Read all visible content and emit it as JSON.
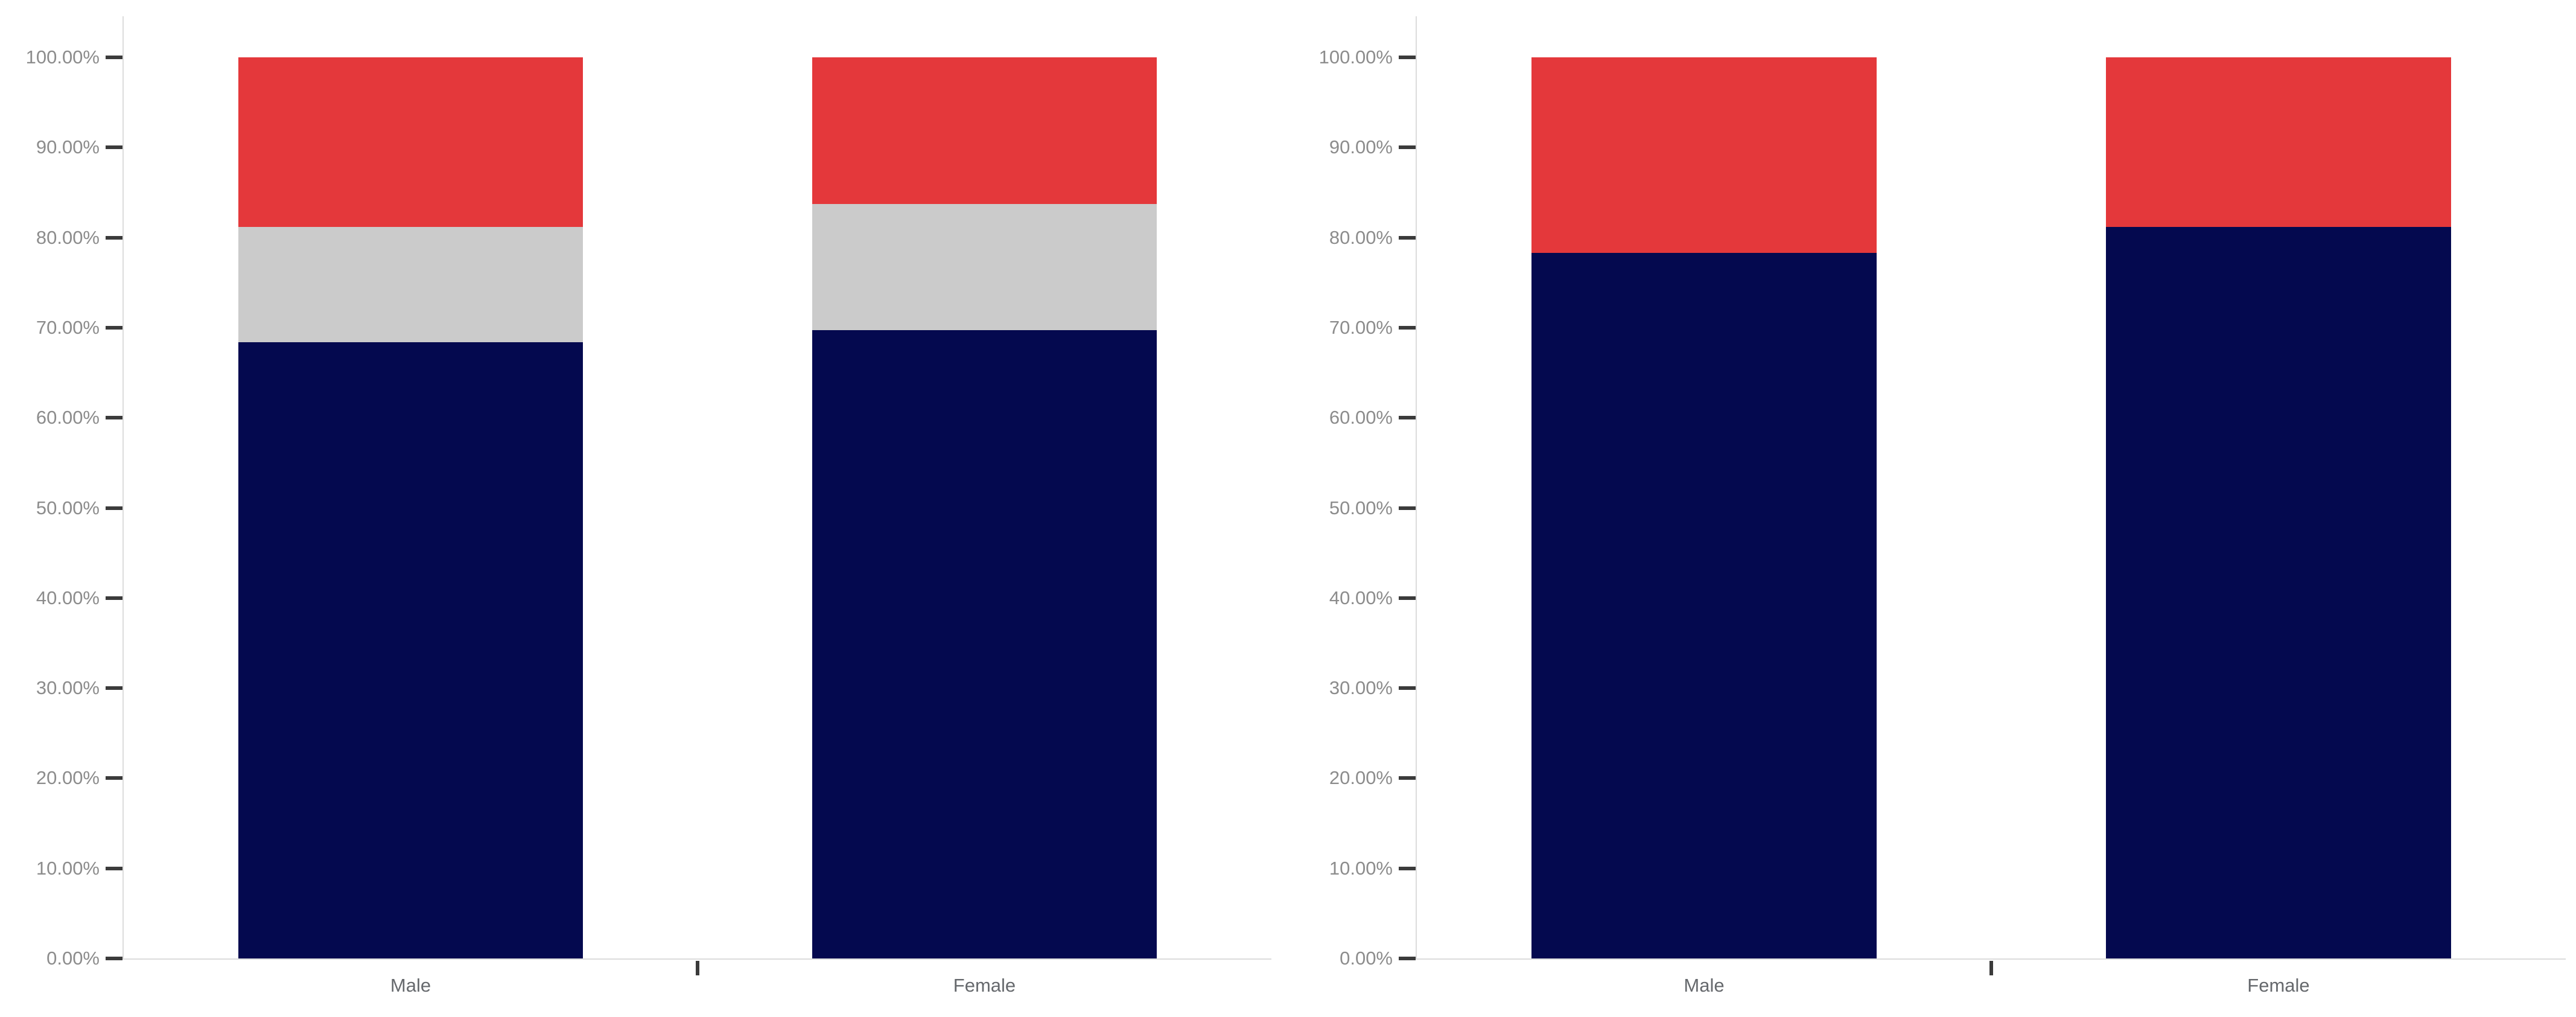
{
  "page": {
    "background_color": "#ffffff"
  },
  "styles": {
    "axis_line_color": "#dcdcdc",
    "tick_mark_color": "#3b3b3b",
    "y_tick_label_color": "#8c8c8c",
    "x_tick_label_color": "#66696d"
  },
  "chart_data": [
    {
      "type": "bar",
      "stacked": true,
      "orientation": "vertical",
      "title": "",
      "categories": [
        "Male",
        "Female"
      ],
      "series": [
        {
          "name": "navy-segment",
          "color": "#04094f",
          "values": [
            68.4,
            69.7
          ]
        },
        {
          "name": "silver-segment",
          "color": "#cbcbcb",
          "values": [
            12.8,
            14.0
          ]
        },
        {
          "name": "red-segment",
          "color": "#e4383b",
          "values": [
            18.8,
            16.3
          ]
        }
      ],
      "y_axis": {
        "min": 0,
        "max": 100,
        "tick_step": 10,
        "tick_labels": [
          "0.00%",
          "10.00%",
          "20.00%",
          "30.00%",
          "40.00%",
          "50.00%",
          "60.00%",
          "70.00%",
          "80.00%",
          "90.00%",
          "100.00%"
        ]
      },
      "x_tick_labels": [
        "Male",
        "Female"
      ],
      "legend": "none",
      "gridlines": false
    },
    {
      "type": "bar",
      "stacked": true,
      "orientation": "vertical",
      "title": "",
      "categories": [
        "Male",
        "Female"
      ],
      "series": [
        {
          "name": "navy-segment",
          "color": "#04094f",
          "values": [
            78.3,
            81.2
          ]
        },
        {
          "name": "red-segment",
          "color": "#e4383b",
          "values": [
            21.7,
            18.8
          ]
        }
      ],
      "y_axis": {
        "min": 0,
        "max": 100,
        "tick_step": 10,
        "tick_labels": [
          "0.00%",
          "10.00%",
          "20.00%",
          "30.00%",
          "40.00%",
          "50.00%",
          "60.00%",
          "70.00%",
          "80.00%",
          "90.00%",
          "100.00%"
        ]
      },
      "x_tick_labels": [
        "Male",
        "Female"
      ],
      "legend": "none",
      "gridlines": false
    }
  ]
}
